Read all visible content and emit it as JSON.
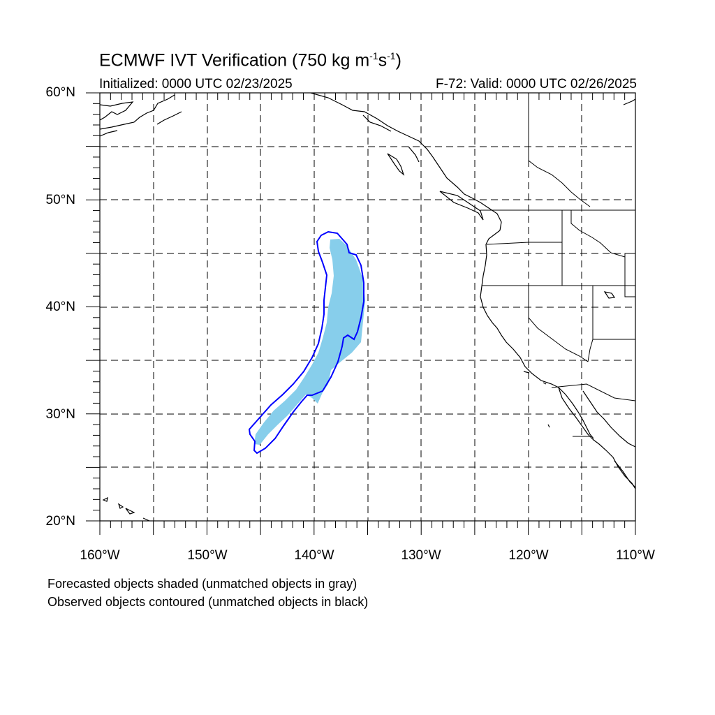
{
  "title": {
    "main": "ECMWF IVT Verification (750 kg m",
    "sup1": "-1",
    "mid": "s",
    "sup2": "-1",
    "end": ")"
  },
  "initialized": "Initialized: 0000 UTC 02/23/2025",
  "valid": "F-72: Valid: 0000 UTC 02/26/2025",
  "lat_labels": [
    "60°N",
    "50°N",
    "40°N",
    "30°N",
    "20°N"
  ],
  "lon_labels": [
    "160°W",
    "150°W",
    "140°W",
    "130°W",
    "120°W",
    "110°W"
  ],
  "legend": {
    "line1": "Forecasted objects shaded (unmatched objects in gray)",
    "line2": "Observed objects contoured (unmatched objects in black)"
  },
  "colors": {
    "forecast_fill": "#87ceeb",
    "observed_contour": "#0000ff",
    "coastline": "#000000",
    "grid": "#000000"
  },
  "map": {
    "projection": "cylindrical equidistant",
    "lon_range": [
      -160,
      -110
    ],
    "lat_range": [
      20,
      60
    ],
    "gridline_interval_deg": 5,
    "gridline_style": "dashed"
  }
}
